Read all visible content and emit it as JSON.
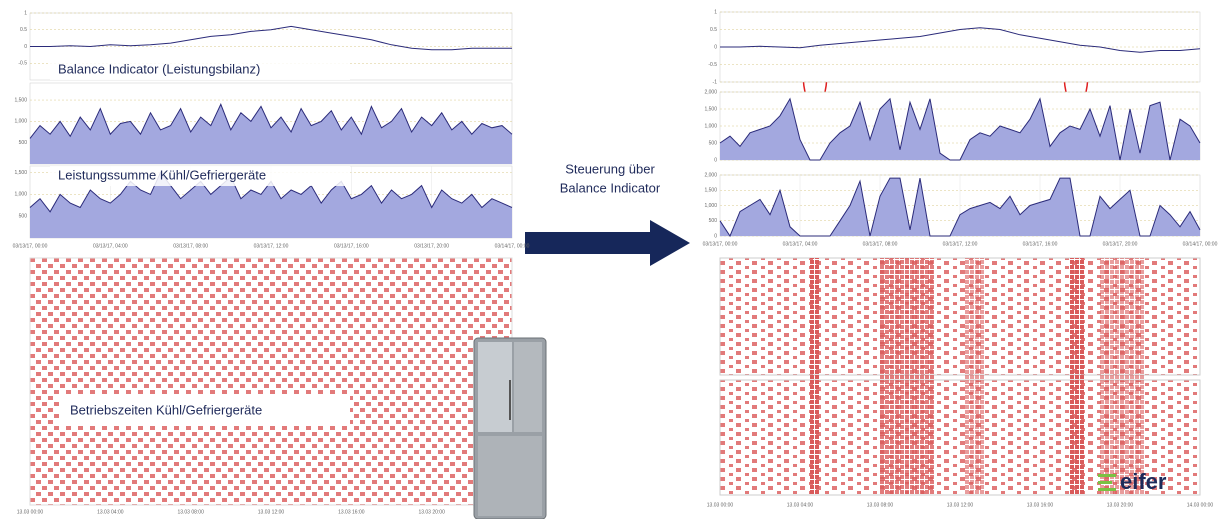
{
  "chart_data": [
    {
      "type": "line",
      "title": "Balance Indicator (Leistungsbilanz)",
      "color": "#2b2b7a",
      "x": [
        0,
        1,
        2,
        3,
        4,
        5,
        6,
        7,
        8,
        9,
        10,
        11,
        12,
        13,
        14,
        15,
        16,
        17,
        18,
        19,
        20,
        21,
        22,
        23,
        24
      ],
      "values": [
        0,
        0,
        0.02,
        0,
        0.05,
        0.02,
        0.05,
        0.1,
        0.2,
        0.3,
        0.35,
        0.45,
        0.5,
        0.6,
        0.5,
        0.4,
        0.3,
        0.2,
        0.05,
        -0.05,
        -0.1,
        -0.1,
        -0.05,
        -0.05,
        -0.05
      ],
      "xlim": [
        0,
        24
      ],
      "ylim": [
        -1,
        1
      ],
      "yticks": [
        -0.5,
        0,
        0.5,
        1
      ],
      "grid": true
    },
    {
      "type": "area",
      "color": "#2b2b7a",
      "fill": "#a3a8df",
      "x": [
        0,
        0.5,
        1,
        1.5,
        2,
        2.5,
        3,
        3.5,
        4,
        4.5,
        5,
        5.5,
        6,
        6.5,
        7,
        7.5,
        8,
        8.5,
        9,
        9.5,
        10,
        10.5,
        11,
        11.5,
        12,
        12.5,
        13,
        13.5,
        14,
        14.5,
        15,
        15.5,
        16,
        16.5,
        17,
        17.5,
        18,
        18.5,
        19,
        19.5,
        20,
        20.5,
        21,
        21.5,
        22,
        22.5,
        23,
        23.5,
        24
      ],
      "values": [
        600,
        900,
        700,
        1000,
        650,
        1100,
        800,
        1300,
        700,
        950,
        1000,
        700,
        1200,
        800,
        900,
        1300,
        750,
        1100,
        900,
        1400,
        800,
        1200,
        1000,
        1350,
        850,
        1100,
        750,
        1300,
        900,
        1000,
        1250,
        800,
        1100,
        700,
        1350,
        850,
        1000,
        1300,
        750,
        1100,
        900,
        1200,
        800,
        1000,
        700,
        950,
        850,
        900,
        700
      ],
      "xlim": [
        0,
        24
      ],
      "ylim": [
        0,
        1900
      ],
      "yticks": [
        {
          "value": 500,
          "label": "500"
        },
        {
          "value": 1000,
          "label": "1,000"
        },
        {
          "value": 1500,
          "label": "1,500"
        }
      ],
      "grid": true
    },
    {
      "type": "area",
      "title": "Leistungssumme Kühl/Gefriergeräte",
      "color": "#2b2b7a",
      "fill": "#a3a8df",
      "x": [
        0,
        0.5,
        1,
        1.5,
        2,
        2.5,
        3,
        3.5,
        4,
        4.5,
        5,
        5.5,
        6,
        6.5,
        7,
        7.5,
        8,
        8.5,
        9,
        9.5,
        10,
        10.5,
        11,
        11.5,
        12,
        12.5,
        13,
        13.5,
        14,
        14.5,
        15,
        15.5,
        16,
        16.5,
        17,
        17.5,
        18,
        18.5,
        19,
        19.5,
        20,
        20.5,
        21,
        21.5,
        22,
        22.5,
        23,
        23.5,
        24
      ],
      "values": [
        700,
        900,
        600,
        1000,
        800,
        700,
        1100,
        900,
        800,
        1000,
        1300,
        1100,
        1000,
        1500,
        1200,
        900,
        1100,
        1300,
        1000,
        1200,
        1400,
        900,
        1100,
        1000,
        1300,
        900,
        1100,
        1000,
        1200,
        800,
        1100,
        1300,
        900,
        1000,
        1200,
        800,
        1100,
        900,
        1000,
        1200,
        700,
        1100,
        900,
        800,
        1000,
        700,
        900,
        800,
        700
      ],
      "xlim": [
        0,
        24
      ],
      "ylim": [
        0,
        1650
      ],
      "yticks": [
        {
          "value": 500,
          "label": "500"
        },
        {
          "value": 1000,
          "label": "1,000"
        },
        {
          "value": 1500,
          "label": "1,500"
        }
      ],
      "xticks": [
        {
          "value": 0,
          "label": "03/13/17, 00:00"
        },
        {
          "value": 4,
          "label": "03/13/17, 04:00"
        },
        {
          "value": 8,
          "label": "03/13/17, 08:00"
        },
        {
          "value": 12,
          "label": "03/13/17, 12:00"
        },
        {
          "value": 16,
          "label": "03/13/17, 16:00"
        },
        {
          "value": 20,
          "label": "03/13/17, 20:00"
        },
        {
          "value": 24,
          "label": "03/14/17, 00:00"
        }
      ],
      "grid": true
    },
    {
      "type": "line",
      "color": "#2b2b7a",
      "x": [
        0,
        1,
        2,
        3,
        4,
        5,
        6,
        7,
        8,
        9,
        10,
        11,
        12,
        13,
        14,
        15,
        16,
        17,
        18,
        19,
        20,
        21,
        22,
        23,
        24
      ],
      "values": [
        0,
        0,
        0.02,
        0,
        -0.02,
        0.05,
        0.1,
        0.15,
        0.2,
        0.25,
        0.3,
        0.4,
        0.5,
        0.55,
        0.5,
        0.35,
        0.25,
        0.15,
        0.05,
        0,
        -0.1,
        -0.15,
        -0.1,
        -0.1,
        -0.05
      ],
      "xlim": [
        0,
        24
      ],
      "ylim": [
        -1,
        1
      ],
      "yticks": [
        -1,
        -0.5,
        0,
        0.5,
        1
      ],
      "grid": true
    },
    {
      "type": "area",
      "color": "#2b2b7a",
      "fill": "#a3a8df",
      "x": [
        0,
        0.5,
        1,
        1.5,
        2,
        2.5,
        3,
        3.5,
        4,
        4.5,
        5,
        5.5,
        6,
        6.5,
        7,
        7.5,
        8,
        8.5,
        9,
        9.5,
        10,
        10.5,
        11,
        11.5,
        12,
        12.5,
        13,
        13.5,
        14,
        14.5,
        15,
        15.5,
        16,
        16.5,
        17,
        17.5,
        18,
        18.5,
        19,
        19.5,
        20,
        20.5,
        21,
        21.5,
        22,
        22.5,
        23,
        23.5,
        24
      ],
      "values": [
        500,
        700,
        400,
        800,
        900,
        1000,
        1300,
        1800,
        600,
        0,
        0,
        500,
        800,
        1000,
        1700,
        600,
        1500,
        1800,
        300,
        1700,
        900,
        1800,
        200,
        0,
        0,
        600,
        800,
        700,
        1000,
        900,
        800,
        1200,
        1800,
        400,
        800,
        1000,
        900,
        1500,
        700,
        1600,
        0,
        1500,
        200,
        1600,
        1700,
        0,
        1200,
        1000,
        500
      ],
      "xlim": [
        0,
        24
      ],
      "ylim": [
        0,
        2000
      ],
      "yticks": [
        0,
        {
          "value": 500,
          "label": "500"
        },
        {
          "value": 1000,
          "label": "1,000"
        },
        {
          "value": 1500,
          "label": "1,500"
        },
        {
          "value": 2000,
          "label": "2,000"
        }
      ],
      "grid": true
    },
    {
      "type": "area",
      "color": "#2b2b7a",
      "fill": "#a3a8df",
      "x": [
        0,
        0.5,
        1,
        1.5,
        2,
        2.5,
        3,
        3.5,
        4,
        4.5,
        5,
        5.5,
        6,
        6.5,
        7,
        7.5,
        8,
        8.5,
        9,
        9.5,
        10,
        10.5,
        11,
        11.5,
        12,
        12.5,
        13,
        13.5,
        14,
        14.5,
        15,
        15.5,
        16,
        16.5,
        17,
        17.5,
        18,
        18.5,
        19,
        19.5,
        20,
        20.5,
        21,
        21.5,
        22,
        22.5,
        23,
        23.5,
        24
      ],
      "values": [
        500,
        0,
        800,
        1000,
        1200,
        700,
        1500,
        300,
        0,
        0,
        0,
        0,
        500,
        1000,
        1800,
        0,
        1300,
        1900,
        1900,
        200,
        1900,
        0,
        0,
        0,
        700,
        900,
        1000,
        1100,
        900,
        1300,
        700,
        1000,
        1100,
        1200,
        1900,
        1900,
        0,
        0,
        1300,
        900,
        1200,
        1500,
        0,
        0,
        1000,
        700,
        300,
        800,
        200
      ],
      "xlim": [
        0,
        24
      ],
      "ylim": [
        0,
        2000
      ],
      "yticks": [
        0,
        {
          "value": 500,
          "label": "500"
        },
        {
          "value": 1000,
          "label": "1,000"
        },
        {
          "value": 1500,
          "label": "1,500"
        },
        {
          "value": 2000,
          "label": "2,000"
        }
      ],
      "xticks": [
        {
          "value": 0,
          "label": "03/13/17, 00:00"
        },
        {
          "value": 4,
          "label": "03/13/17, 04:00"
        },
        {
          "value": 8,
          "label": "03/13/17, 08:00"
        },
        {
          "value": 12,
          "label": "03/13/17, 12:00"
        },
        {
          "value": 16,
          "label": "03/13/17, 16:00"
        },
        {
          "value": 20,
          "label": "03/13/17, 20:00"
        },
        {
          "value": 24,
          "label": "03/14/17, 00:00"
        }
      ],
      "grid": true
    }
  ],
  "raster": {
    "title": "Betriebszeiten Kühl/Gefriergeräte",
    "left_xticks": [
      "13.03 00:00",
      "13.03 04:00",
      "13.03 08:00",
      "13.03 12:00",
      "13.03 16:00",
      "13.03 20:00"
    ],
    "right_xticks": [
      "13.03 00:00",
      "13.03 04:00",
      "13.03 08:00",
      "13.03 12:00",
      "13.03 16:00",
      "13.03 20:00",
      "14.03 00:00"
    ]
  },
  "arrow_label": [
    "Steuerung über",
    "Balance Indicator"
  ],
  "logo": "eifer"
}
